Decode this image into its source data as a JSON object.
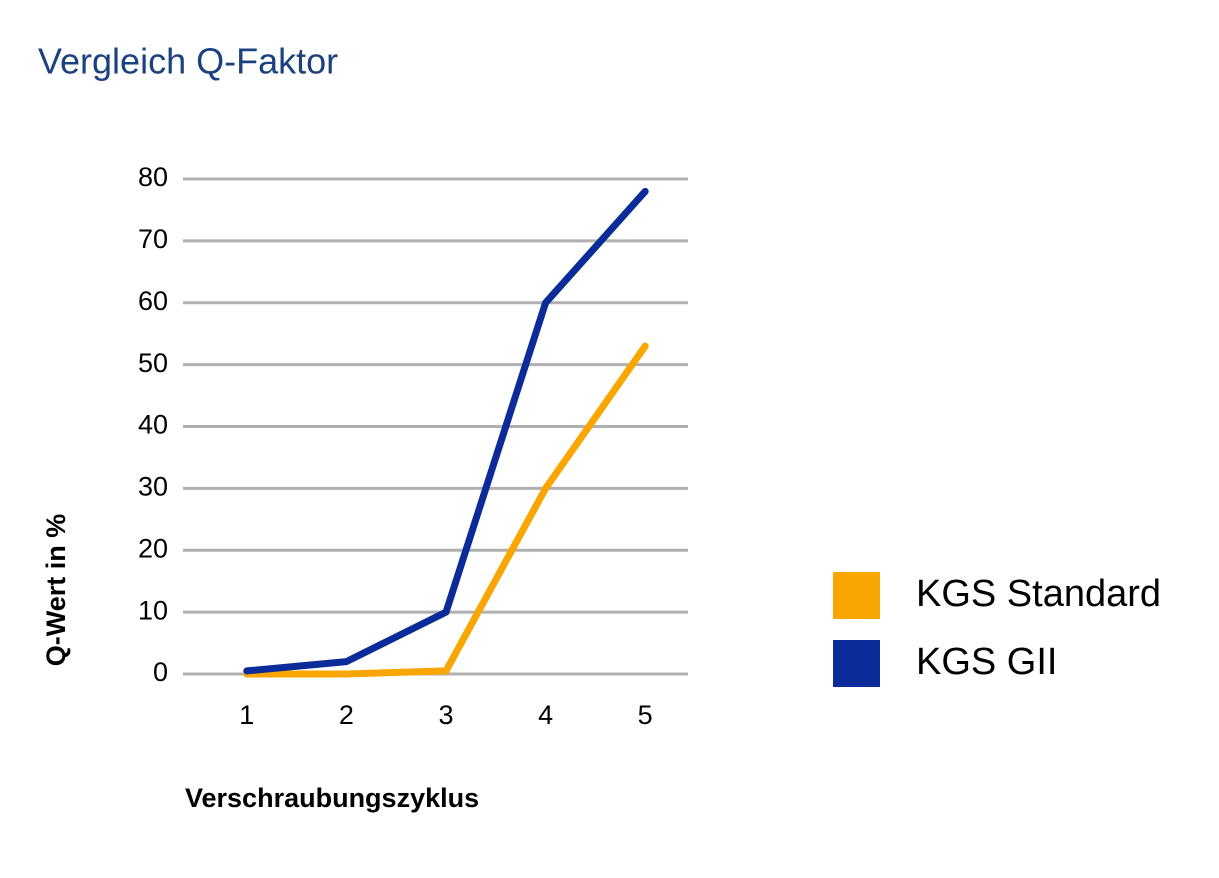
{
  "chart_data": {
    "type": "line",
    "title": "Vergleich Q-Faktor",
    "x_label": "Verschraubungszyklus",
    "y_label": "Q-Wert in %",
    "categories": [
      "1",
      "2",
      "3",
      "4",
      "5"
    ],
    "series": [
      {
        "name": "KGS Standard",
        "color": "#f9a602",
        "values": [
          0,
          0,
          0.5,
          30,
          53
        ]
      },
      {
        "name": "KGS GII",
        "color": "#0b2c98",
        "values": [
          0.5,
          2,
          10,
          60,
          78
        ]
      }
    ],
    "ylim": [
      0,
      80
    ],
    "yticks": [
      0,
      10,
      20,
      30,
      40,
      50,
      60,
      70,
      80
    ],
    "grid": true,
    "legend": "right"
  }
}
